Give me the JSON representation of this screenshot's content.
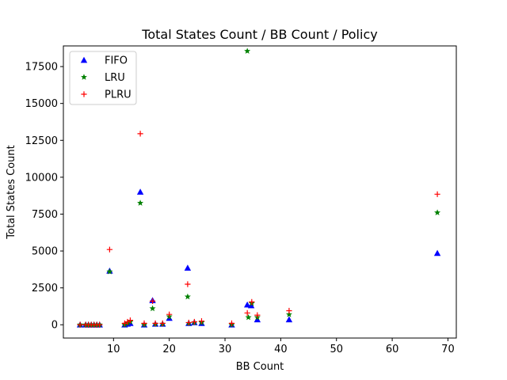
{
  "chart_data": {
    "type": "scatter",
    "title": "Total States Count / BB Count / Policy",
    "xlabel": "BB Count",
    "ylabel": "Total States Count",
    "xlim": [
      1,
      71.5
    ],
    "ylim": [
      -900,
      18900
    ],
    "xticks": [
      10,
      20,
      30,
      40,
      50,
      60,
      70
    ],
    "yticks": [
      0,
      2500,
      5000,
      7500,
      10000,
      12500,
      15000,
      17500
    ],
    "grid": false,
    "legend_position": "top-left",
    "series": [
      {
        "name": "FIFO",
        "marker": "triangle",
        "color": "#0000ff",
        "points": [
          [
            4,
            0
          ],
          [
            5,
            0
          ],
          [
            5.5,
            0
          ],
          [
            6,
            0
          ],
          [
            6.5,
            0
          ],
          [
            7,
            0
          ],
          [
            7.5,
            0
          ],
          [
            9.3,
            3650
          ],
          [
            12,
            0
          ],
          [
            12.5,
            50
          ],
          [
            13,
            100
          ],
          [
            14.8,
            9000
          ],
          [
            15.5,
            0
          ],
          [
            17,
            1650
          ],
          [
            17.5,
            50
          ],
          [
            18.8,
            50
          ],
          [
            20,
            450
          ],
          [
            23.3,
            3850
          ],
          [
            23.5,
            100
          ],
          [
            24.5,
            150
          ],
          [
            25.8,
            100
          ],
          [
            31.2,
            0
          ],
          [
            34,
            1350
          ],
          [
            34.7,
            1300
          ],
          [
            35.8,
            350
          ],
          [
            41.5,
            350
          ],
          [
            68.1,
            4850
          ]
        ]
      },
      {
        "name": "LRU",
        "marker": "star",
        "color": "#008000",
        "points": [
          [
            4,
            0
          ],
          [
            5,
            0
          ],
          [
            5.5,
            0
          ],
          [
            6,
            0
          ],
          [
            6.5,
            0
          ],
          [
            7,
            0
          ],
          [
            7.5,
            0
          ],
          [
            9.3,
            3600
          ],
          [
            12,
            0
          ],
          [
            12.5,
            100
          ],
          [
            13,
            200
          ],
          [
            14.8,
            8250
          ],
          [
            15.5,
            0
          ],
          [
            17,
            1100
          ],
          [
            17.5,
            50
          ],
          [
            18.8,
            50
          ],
          [
            20,
            550
          ],
          [
            23.3,
            1900
          ],
          [
            23.5,
            100
          ],
          [
            24.5,
            150
          ],
          [
            25.8,
            150
          ],
          [
            31.2,
            0
          ],
          [
            34,
            18550
          ],
          [
            34.2,
            500
          ],
          [
            34.8,
            1450
          ],
          [
            35.8,
            500
          ],
          [
            41.5,
            700
          ],
          [
            68.1,
            7600
          ]
        ]
      },
      {
        "name": "PLRU",
        "marker": "plus",
        "color": "#ff0000",
        "points": [
          [
            4,
            0
          ],
          [
            5,
            0
          ],
          [
            5.5,
            0
          ],
          [
            6,
            0
          ],
          [
            6.5,
            0
          ],
          [
            7,
            0
          ],
          [
            7.5,
            0
          ],
          [
            9.3,
            5100
          ],
          [
            12,
            100
          ],
          [
            12.5,
            200
          ],
          [
            13,
            300
          ],
          [
            14.8,
            12950
          ],
          [
            15.5,
            100
          ],
          [
            17,
            1600
          ],
          [
            17.5,
            100
          ],
          [
            18.8,
            100
          ],
          [
            20,
            700
          ],
          [
            23.3,
            2750
          ],
          [
            23.5,
            150
          ],
          [
            24.5,
            200
          ],
          [
            25.8,
            250
          ],
          [
            31.2,
            100
          ],
          [
            34,
            800
          ],
          [
            34.8,
            1550
          ],
          [
            35.8,
            650
          ],
          [
            41.5,
            950
          ],
          [
            68.1,
            8850
          ]
        ]
      }
    ]
  }
}
